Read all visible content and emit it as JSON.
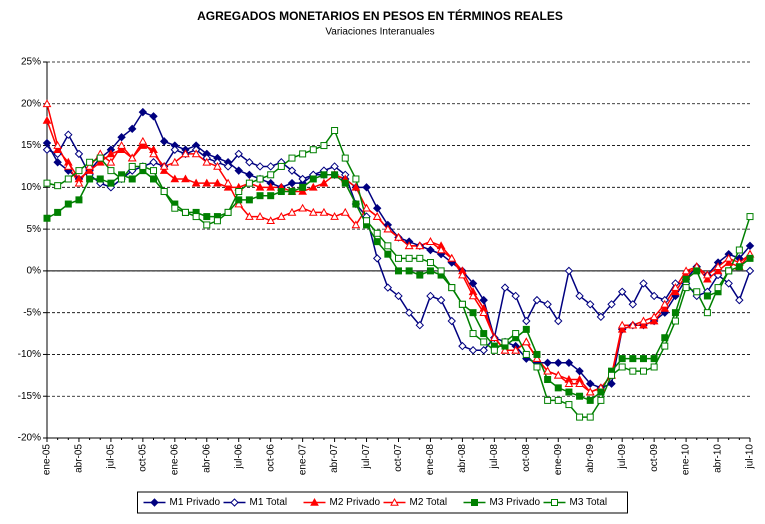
{
  "chart_data": {
    "type": "line",
    "title": "AGREGADOS MONETARIOS EN PESOS EN TÉRMINOS REALES",
    "subtitle": "Variaciones Interanuales",
    "categories": [
      "ene-05",
      null,
      null,
      "abr-05",
      null,
      null,
      "jul-05",
      null,
      null,
      "oct-05",
      null,
      null,
      "ene-06",
      null,
      null,
      "abr-06",
      null,
      null,
      "jul-06",
      null,
      null,
      "oct-06",
      null,
      null,
      "ene-07",
      null,
      null,
      "abr-07",
      null,
      null,
      "jul-07",
      null,
      null,
      "oct-07",
      null,
      null,
      "ene-08",
      null,
      null,
      "abr-08",
      null,
      null,
      "jul-08",
      null,
      null,
      "oct-08",
      null,
      null,
      "ene-09",
      null,
      null,
      "abr-09",
      null,
      null,
      "jul-09",
      null,
      null,
      "oct-09",
      null,
      null,
      "ene-10",
      null,
      null,
      "abr-10",
      null,
      null,
      "jul-10"
    ],
    "ylim": [
      -20,
      25
    ],
    "yticks": [
      {
        "value": -20,
        "label": "-20%"
      },
      {
        "value": -15,
        "label": "-15%"
      },
      {
        "value": -10,
        "label": "-10%"
      },
      {
        "value": -5,
        "label": "-5%"
      },
      {
        "value": 0,
        "label": "0%"
      },
      {
        "value": 5,
        "label": "5%"
      },
      {
        "value": 10,
        "label": "10%"
      },
      {
        "value": 15,
        "label": "15%"
      },
      {
        "value": 20,
        "label": "20%"
      },
      {
        "value": 25,
        "label": "25%"
      }
    ],
    "grid": true,
    "legend": "bottom",
    "series": [
      {
        "name": "M1 Privado",
        "color": "#000080",
        "marker": "diamond",
        "filled": true,
        "values": [
          15.3,
          13,
          12,
          11,
          12,
          13.5,
          14.5,
          16,
          17,
          19,
          18.5,
          15.5,
          15,
          14.5,
          15,
          14,
          13.5,
          13,
          12,
          11.5,
          11,
          10.5,
          10,
          10.5,
          10.5,
          11.5,
          11.5,
          11.5,
          11,
          10,
          10,
          7.5,
          5.5,
          4,
          3.5,
          3,
          2.5,
          2,
          1,
          0,
          -1.5,
          -3.5,
          -8,
          -8.5,
          -9,
          -10.5,
          -11,
          -11,
          -11,
          -11,
          -12,
          -13.5,
          -14,
          -13.5,
          -7,
          -6.5,
          -6.5,
          -6,
          -5,
          -3,
          -1,
          0.5,
          -0.5,
          1,
          2,
          1.5,
          3
        ]
      },
      {
        "name": "M1 Total",
        "color": "#000080",
        "marker": "diamond",
        "filled": false,
        "values": [
          14.5,
          14,
          16.3,
          14,
          11.5,
          10.5,
          10,
          11,
          12,
          12.5,
          13,
          12.5,
          14.5,
          14,
          14.5,
          13.5,
          13,
          12.5,
          14,
          13,
          12.5,
          12.5,
          13,
          12,
          11,
          11.5,
          12,
          12.5,
          11.5,
          8,
          6.5,
          1.5,
          -2,
          -3,
          -5,
          -6.5,
          -3,
          -3.5,
          -6,
          -9,
          -9.5,
          -9.5,
          -8,
          -2,
          -3,
          -6,
          -3.5,
          -4,
          -6,
          0,
          -3,
          -4,
          -5.5,
          -4,
          -2.5,
          -4,
          -1.5,
          -3,
          -3.5,
          -1.5,
          -1.5,
          -3,
          -2.5,
          -0.5,
          -1.5,
          -3.5,
          0
        ]
      },
      {
        "name": "M2 Privado",
        "color": "#ff0000",
        "marker": "triangle",
        "filled": true,
        "values": [
          18,
          14.5,
          13,
          11,
          12,
          13,
          14,
          14.5,
          13.5,
          15,
          14.5,
          12,
          11,
          11,
          10.5,
          10.5,
          10.5,
          10,
          10,
          10.5,
          10,
          10,
          10,
          9.5,
          9.5,
          10,
          10.5,
          11.5,
          11,
          10,
          7.5,
          6.5,
          5,
          4,
          3,
          3,
          3.5,
          3,
          1.5,
          0,
          -2.5,
          -4.5,
          -8,
          -9.5,
          -9.5,
          -8.5,
          -10.5,
          -12,
          -12.5,
          -13,
          -13,
          -14.5,
          -14,
          -12.5,
          -7,
          -6.5,
          -6.5,
          -6,
          -4.5,
          -2.5,
          -0.5,
          0.5,
          -1,
          0,
          1,
          0.5,
          2
        ]
      },
      {
        "name": "M2 Total",
        "color": "#ff0000",
        "marker": "triangle",
        "filled": false,
        "values": [
          20,
          15,
          12.5,
          10.5,
          12.5,
          14,
          13,
          15,
          13.5,
          15.5,
          14,
          12.5,
          13,
          14,
          14,
          13,
          12.5,
          10.5,
          8,
          6.5,
          6.5,
          6,
          6.5,
          7,
          7.5,
          7,
          7,
          6.5,
          7,
          5.5,
          7.5,
          6.5,
          5,
          4,
          3,
          3,
          3.5,
          2.5,
          1.5,
          -0.5,
          -3,
          -5,
          -8,
          -9.5,
          -9.5,
          -8.5,
          -10.5,
          -12,
          -12.5,
          -13.5,
          -13.5,
          -14.5,
          -14,
          -12.5,
          -6.5,
          -6.5,
          -6,
          -5.5,
          -4,
          -2,
          0,
          0.5,
          -0.5,
          0.5,
          1.5,
          1,
          2
        ]
      },
      {
        "name": "M3 Privado",
        "color": "#008000",
        "marker": "square",
        "filled": true,
        "values": [
          6.3,
          7,
          8,
          8.5,
          11,
          11,
          10.5,
          11.5,
          11,
          12,
          11,
          9.5,
          8,
          7,
          7,
          6.5,
          6.5,
          7,
          8.5,
          8.5,
          9,
          9,
          9.5,
          9.5,
          10,
          11,
          11.5,
          11.5,
          10.5,
          8,
          5.5,
          3.5,
          2,
          0,
          0,
          -0.5,
          0,
          -0.5,
          -2,
          -4,
          -5,
          -7.5,
          -9,
          -9,
          -8,
          -7,
          -10,
          -13,
          -14,
          -14.5,
          -15,
          -15.5,
          -14.5,
          -12,
          -10.5,
          -10.5,
          -10.5,
          -10.5,
          -8,
          -5,
          -1,
          0,
          -3,
          -2.5,
          0,
          0.5,
          1.5
        ]
      },
      {
        "name": "M3 Total",
        "color": "#008000",
        "marker": "square",
        "filled": false,
        "values": [
          10.5,
          10.2,
          11,
          12,
          13,
          13.5,
          12,
          11,
          12.5,
          12.5,
          12,
          9.5,
          7.5,
          7,
          6.5,
          5.5,
          6,
          7,
          9.5,
          10.5,
          11,
          11.5,
          12.5,
          13.5,
          14,
          14.5,
          15,
          16.8,
          13.5,
          11,
          6,
          4.5,
          3,
          1.5,
          1.5,
          1.5,
          1,
          0,
          -2,
          -4,
          -7.5,
          -8.5,
          -9.5,
          -8.5,
          -7.5,
          -10,
          -11.5,
          -15.5,
          -15.5,
          -16,
          -17.5,
          -17.5,
          -15.5,
          -12.5,
          -11.5,
          -12,
          -12,
          -11.5,
          -9,
          -6,
          -2,
          -2.5,
          -5,
          -2,
          0,
          2.5,
          6.5
        ]
      }
    ]
  }
}
